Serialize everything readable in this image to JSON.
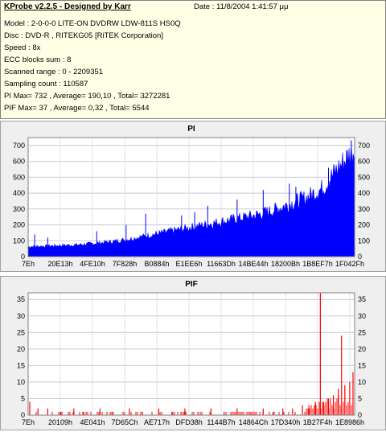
{
  "header": {
    "title": "KProbe v2.2.5 - Designed by Karr",
    "date": "Date : 11/8/2004 1:41:57 μμ"
  },
  "info": {
    "model": "Model : 2-0-0-0 LITE-ON DVDRW LDW-811S   HS0Q",
    "disc": "Disc : DVD-R , RITEKG05 [RiTEK Corporation]",
    "speed": "Speed : 8x",
    "ecc": "ECC blocks sum : 8",
    "range": "Scanned range : 0 - 2209351",
    "sampling": "Sampling count : 110587",
    "pi": "PI Max= 732 , Average= 190,10 , Total= 3272281",
    "pif": "PIF Max= 37 , Average= 0,32 , Total= 5544"
  },
  "chart_data": [
    {
      "type": "area",
      "title": "PI",
      "ylim": [
        0,
        750
      ],
      "yticks": [
        0,
        100,
        200,
        300,
        400,
        500,
        600,
        700
      ],
      "xticks": [
        "7Eh",
        "20E13h",
        "4FE10h",
        "7F828h",
        "B0884h",
        "E1EE6h",
        "11663Dh",
        "14BE44h",
        "18200Bh",
        "1B8EF7h",
        "1F042Fh"
      ],
      "series_color": "#0000ff",
      "profile": [
        {
          "x": 0.0,
          "y": 65
        },
        {
          "x": 0.05,
          "y": 68
        },
        {
          "x": 0.1,
          "y": 72
        },
        {
          "x": 0.15,
          "y": 76
        },
        {
          "x": 0.2,
          "y": 85
        },
        {
          "x": 0.25,
          "y": 95
        },
        {
          "x": 0.3,
          "y": 110
        },
        {
          "x": 0.35,
          "y": 130
        },
        {
          "x": 0.4,
          "y": 150
        },
        {
          "x": 0.45,
          "y": 170
        },
        {
          "x": 0.5,
          "y": 190
        },
        {
          "x": 0.55,
          "y": 210
        },
        {
          "x": 0.6,
          "y": 230
        },
        {
          "x": 0.65,
          "y": 250
        },
        {
          "x": 0.7,
          "y": 270
        },
        {
          "x": 0.75,
          "y": 300
        },
        {
          "x": 0.8,
          "y": 340
        },
        {
          "x": 0.85,
          "y": 380
        },
        {
          "x": 0.9,
          "y": 440
        },
        {
          "x": 0.93,
          "y": 520
        },
        {
          "x": 0.96,
          "y": 600
        },
        {
          "x": 0.98,
          "y": 650
        },
        {
          "x": 1.0,
          "y": 700
        }
      ],
      "spikes": [
        {
          "x": 0.02,
          "y": 140
        },
        {
          "x": 0.06,
          "y": 120
        },
        {
          "x": 0.21,
          "y": 160
        },
        {
          "x": 0.3,
          "y": 200
        },
        {
          "x": 0.36,
          "y": 270
        },
        {
          "x": 0.47,
          "y": 260
        },
        {
          "x": 0.51,
          "y": 280
        },
        {
          "x": 0.55,
          "y": 320
        },
        {
          "x": 0.64,
          "y": 360
        },
        {
          "x": 0.72,
          "y": 420
        },
        {
          "x": 0.8,
          "y": 460
        },
        {
          "x": 0.82,
          "y": 440
        },
        {
          "x": 0.92,
          "y": 560
        },
        {
          "x": 0.99,
          "y": 732
        }
      ]
    },
    {
      "type": "bar",
      "title": "PIF",
      "ylim": [
        0,
        37
      ],
      "yticks": [
        0,
        5,
        10,
        15,
        20,
        25,
        30,
        35
      ],
      "xticks": [
        "7Eh",
        "20109h",
        "4E041h",
        "7D65Ch",
        "AE717h",
        "DFD38h",
        "1144B7h",
        "14864Ch",
        "17D340h",
        "1B27F4h",
        "1E8986h"
      ],
      "series_color": "#ff0000",
      "bars": [
        {
          "x": 0.005,
          "y": 4
        },
        {
          "x": 0.03,
          "y": 2
        },
        {
          "x": 0.06,
          "y": 2
        },
        {
          "x": 0.1,
          "y": 1
        },
        {
          "x": 0.14,
          "y": 2
        },
        {
          "x": 0.17,
          "y": 1
        },
        {
          "x": 0.22,
          "y": 2
        },
        {
          "x": 0.26,
          "y": 1
        },
        {
          "x": 0.31,
          "y": 2
        },
        {
          "x": 0.35,
          "y": 1
        },
        {
          "x": 0.4,
          "y": 2
        },
        {
          "x": 0.44,
          "y": 1
        },
        {
          "x": 0.48,
          "y": 2
        },
        {
          "x": 0.52,
          "y": 1
        },
        {
          "x": 0.56,
          "y": 2
        },
        {
          "x": 0.6,
          "y": 1
        },
        {
          "x": 0.64,
          "y": 2
        },
        {
          "x": 0.68,
          "y": 1
        },
        {
          "x": 0.72,
          "y": 2
        },
        {
          "x": 0.75,
          "y": 1
        },
        {
          "x": 0.78,
          "y": 2
        },
        {
          "x": 0.81,
          "y": 2
        },
        {
          "x": 0.84,
          "y": 3
        },
        {
          "x": 0.86,
          "y": 3
        },
        {
          "x": 0.88,
          "y": 4
        },
        {
          "x": 0.895,
          "y": 37
        },
        {
          "x": 0.905,
          "y": 4
        },
        {
          "x": 0.92,
          "y": 5
        },
        {
          "x": 0.935,
          "y": 6
        },
        {
          "x": 0.95,
          "y": 8
        },
        {
          "x": 0.96,
          "y": 24
        },
        {
          "x": 0.97,
          "y": 9
        },
        {
          "x": 0.985,
          "y": 10
        },
        {
          "x": 0.995,
          "y": 13
        }
      ]
    }
  ]
}
